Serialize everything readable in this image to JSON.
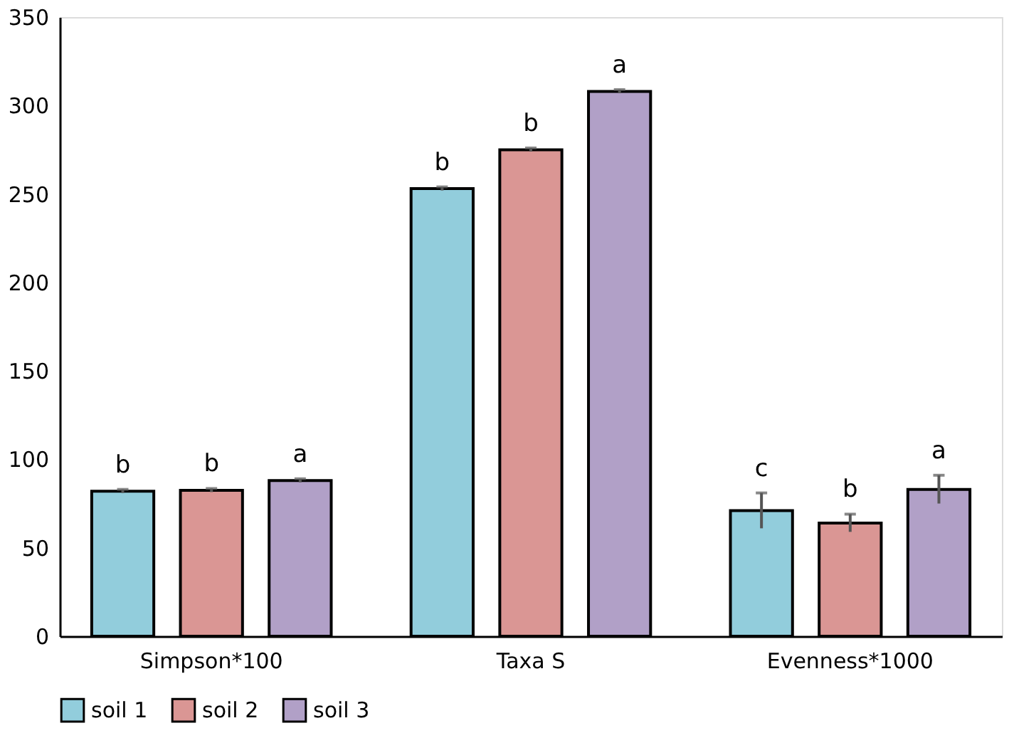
{
  "chart_data": {
    "type": "bar",
    "categories": [
      "Simpson*100",
      "Taxa S",
      "Evenness*1000"
    ],
    "series": [
      {
        "name": "soil 1",
        "color": "#92cddc",
        "values": [
          82,
          253,
          71
        ],
        "errors": [
          1,
          1,
          10
        ],
        "value_labels": [
          "b",
          "b",
          "c"
        ]
      },
      {
        "name": "soil 2",
        "color": "#da9694",
        "values": [
          82.5,
          275,
          64
        ],
        "errors": [
          1,
          1,
          5
        ],
        "value_labels": [
          "b",
          "b",
          "b"
        ]
      },
      {
        "name": "soil 3",
        "color": "#b1a0c7",
        "values": [
          88,
          308,
          83
        ],
        "errors": [
          1,
          1,
          8
        ],
        "value_labels": [
          "a",
          "a",
          "a"
        ]
      }
    ],
    "ylim": [
      0,
      350
    ],
    "yticks": [
      0,
      50,
      100,
      150,
      200,
      250,
      300,
      350
    ],
    "grid": false,
    "legend": "bottom"
  }
}
